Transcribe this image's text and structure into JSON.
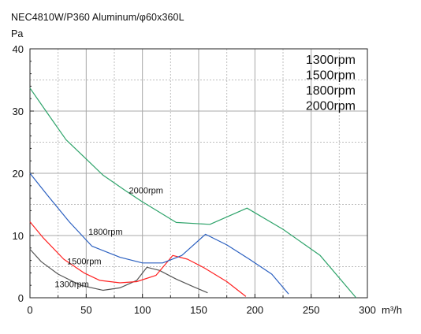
{
  "header": {
    "title": "NEC4810W/P360 Aluminum/φ60x360L",
    "y_unit": "Pa"
  },
  "chart_data": {
    "type": "line",
    "title": "NEC4810W/P360 Aluminum/φ60x360L",
    "ylabel": "Pa",
    "xlabel": "m³/h",
    "xlim": [
      0,
      300
    ],
    "ylim": [
      0,
      40
    ],
    "x_ticks": [
      "0",
      "50",
      "100",
      "150",
      "200",
      "250",
      "300"
    ],
    "y_ticks": [
      "0",
      "10",
      "20",
      "30",
      "40"
    ],
    "grid": true,
    "legend_position": "top-right",
    "legend": [
      "1300rpm",
      "1500rpm",
      "1800rpm",
      "2000rpm"
    ],
    "series": [
      {
        "name": "1300rpm",
        "color": "#555555",
        "points": [
          [
            0,
            7.8
          ],
          [
            10,
            5.8
          ],
          [
            25,
            3.8
          ],
          [
            45,
            2.0
          ],
          [
            65,
            1.2
          ],
          [
            80,
            1.6
          ],
          [
            95,
            2.8
          ],
          [
            104,
            4.9
          ],
          [
            115,
            4.4
          ],
          [
            130,
            3.0
          ],
          [
            145,
            1.8
          ],
          [
            158,
            0.8
          ]
        ]
      },
      {
        "name": "1500rpm",
        "color": "#ff2020",
        "points": [
          [
            0,
            12.2
          ],
          [
            12,
            9.6
          ],
          [
            30,
            6.2
          ],
          [
            48,
            4.0
          ],
          [
            62,
            2.8
          ],
          [
            80,
            2.4
          ],
          [
            95,
            2.6
          ],
          [
            112,
            3.6
          ],
          [
            127,
            6.8
          ],
          [
            140,
            6.2
          ],
          [
            155,
            4.8
          ],
          [
            175,
            2.6
          ],
          [
            192,
            0.2
          ]
        ]
      },
      {
        "name": "1800rpm",
        "color": "#2a5fc0",
        "points": [
          [
            0,
            20.0
          ],
          [
            15,
            16.6
          ],
          [
            35,
            12.2
          ],
          [
            55,
            8.3
          ],
          [
            80,
            6.5
          ],
          [
            100,
            5.6
          ],
          [
            118,
            5.6
          ],
          [
            135,
            6.8
          ],
          [
            156,
            10.2
          ],
          [
            175,
            8.5
          ],
          [
            195,
            6.2
          ],
          [
            215,
            3.8
          ],
          [
            230,
            0.6
          ]
        ]
      },
      {
        "name": "2000rpm",
        "color": "#2ea36a",
        "points": [
          [
            0,
            33.7
          ],
          [
            15,
            29.8
          ],
          [
            32,
            25.4
          ],
          [
            50,
            22.3
          ],
          [
            65,
            19.7
          ],
          [
            85,
            17.2
          ],
          [
            100,
            15.4
          ],
          [
            130,
            12.1
          ],
          [
            160,
            11.8
          ],
          [
            193,
            14.4
          ],
          [
            225,
            11.0
          ],
          [
            258,
            6.8
          ],
          [
            290,
            0
          ]
        ]
      }
    ],
    "annotations": [
      {
        "text": "2000rpm",
        "x": 88,
        "y": 16.8
      },
      {
        "text": "1800rpm",
        "x": 52,
        "y": 10.1
      },
      {
        "text": "1500rpm",
        "x": 33,
        "y": 5.4
      },
      {
        "text": "1300rpm",
        "x": 22,
        "y": 1.7
      }
    ]
  }
}
